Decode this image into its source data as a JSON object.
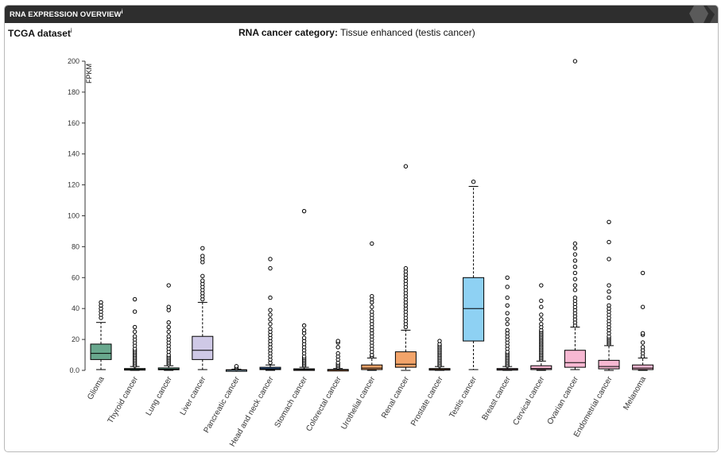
{
  "panel": {
    "title": "RNA EXPRESSION OVERVIEW",
    "title_sup": "i"
  },
  "dataset": {
    "label": "TCGA dataset",
    "sup": "i"
  },
  "category": {
    "key": "RNA cancer category:",
    "value": "Tissue enhanced (testis cancer)"
  },
  "chart_data": {
    "type": "boxplot",
    "ylabel": "FPKM",
    "ylim": [
      0,
      200
    ],
    "yticks": [
      "0.0",
      "20",
      "40",
      "60",
      "80",
      "100",
      "120",
      "140",
      "160",
      "180",
      "200"
    ],
    "grid": false,
    "categories": [
      "Glioma",
      "Thyroid cancer",
      "Lung cancer",
      "Liver cancer",
      "Pancreatic cancer",
      "Head and neck cancer",
      "Stomach cancer",
      "Colorectal cancer",
      "Urothelial cancer",
      "Renal cancer",
      "Prostate cancer",
      "Testis cancer",
      "Breast cancer",
      "Cervical cancer",
      "Ovarian cancer",
      "Endometrial cancer",
      "Melanoma"
    ],
    "boxes": [
      {
        "category": "Glioma",
        "color": "#69a88e",
        "whisker_low": 0.5,
        "q1": 7,
        "median": 11,
        "q3": 17,
        "whisker_high": 31,
        "outliers": [
          34,
          36,
          38,
          40,
          42,
          44
        ]
      },
      {
        "category": "Thyroid cancer",
        "color": "#69a88e",
        "whisker_low": 0,
        "q1": 0.3,
        "median": 0.6,
        "q3": 1.2,
        "whisker_high": 2.5,
        "outliers": [
          3,
          4,
          5,
          6,
          7,
          8,
          9,
          10,
          11,
          12,
          13,
          14,
          16,
          18,
          20,
          22,
          25,
          28,
          38,
          46
        ]
      },
      {
        "category": "Lung cancer",
        "color": "#69a88e",
        "whisker_low": 0,
        "q1": 0.4,
        "median": 0.8,
        "q3": 1.6,
        "whisker_high": 3,
        "outliers": [
          4,
          5,
          6,
          7,
          8,
          9,
          10,
          12,
          14,
          16,
          18,
          20,
          22,
          25,
          28,
          31,
          39,
          41,
          55
        ]
      },
      {
        "category": "Liver cancer",
        "color": "#cfc9e6",
        "whisker_low": 0.5,
        "q1": 7,
        "median": 13,
        "q3": 22,
        "whisker_high": 44,
        "outliers": [
          46,
          48,
          50,
          52,
          54,
          56,
          58,
          61,
          70,
          72,
          74,
          79
        ]
      },
      {
        "category": "Pancreatic cancer",
        "color": "#b1d5e7",
        "whisker_low": 0,
        "q1": 0.1,
        "median": 0.2,
        "q3": 0.4,
        "whisker_high": 0.8,
        "outliers": [
          1.2,
          2,
          2.7
        ]
      },
      {
        "category": "Head and neck cancer",
        "color": "#3b6fb5",
        "whisker_low": 0,
        "q1": 0.5,
        "median": 1,
        "q3": 2,
        "whisker_high": 3.5,
        "outliers": [
          5,
          7,
          9,
          11,
          13,
          15,
          17,
          19,
          21,
          23,
          25,
          27,
          30,
          33,
          36,
          39,
          47,
          66,
          72
        ]
      },
      {
        "category": "Stomach cancer",
        "color": "#f3a46a",
        "whisker_low": 0,
        "q1": 0.2,
        "median": 0.5,
        "q3": 1,
        "whisker_high": 2,
        "outliers": [
          3,
          4,
          5,
          6,
          7,
          8,
          9,
          11,
          13,
          15,
          17,
          19,
          21,
          24,
          26,
          29,
          103
        ]
      },
      {
        "category": "Colorectal cancer",
        "color": "#f3a46a",
        "whisker_low": 0,
        "q1": 0.1,
        "median": 0.3,
        "q3": 0.6,
        "whisker_high": 1.2,
        "outliers": [
          2,
          3,
          4,
          5,
          7,
          9,
          11,
          15,
          18,
          19
        ]
      },
      {
        "category": "Urothelial cancer",
        "color": "#f3a46a",
        "whisker_low": 0,
        "q1": 0.5,
        "median": 1.5,
        "q3": 3.5,
        "whisker_high": 8,
        "outliers": [
          9,
          10,
          12,
          14,
          16,
          18,
          20,
          22,
          24,
          26,
          28,
          30,
          32,
          34,
          36,
          38,
          41,
          44,
          46,
          48,
          82
        ]
      },
      {
        "category": "Renal cancer",
        "color": "#f3a46a",
        "whisker_low": 0,
        "q1": 2,
        "median": 4,
        "q3": 12,
        "whisker_high": 26,
        "outliers": [
          28,
          30,
          32,
          34,
          36,
          38,
          40,
          42,
          44,
          46,
          48,
          50,
          52,
          54,
          56,
          58,
          60,
          62,
          64,
          66,
          132
        ]
      },
      {
        "category": "Prostate cancer",
        "color": "#f3a46a",
        "whisker_low": 0,
        "q1": 0.3,
        "median": 0.6,
        "q3": 1.2,
        "whisker_high": 2.5,
        "outliers": [
          3,
          4,
          5,
          6,
          7,
          8,
          9,
          10,
          11,
          12,
          13,
          14,
          15,
          16,
          17,
          19
        ]
      },
      {
        "category": "Testis cancer",
        "color": "#8ed1f3",
        "whisker_low": 0.5,
        "q1": 19,
        "median": 40,
        "q3": 60,
        "whisker_high": 119,
        "outliers": [
          122
        ]
      },
      {
        "category": "Breast cancer",
        "color": "#f7b8d2",
        "whisker_low": 0,
        "q1": 0.3,
        "median": 0.6,
        "q3": 1.2,
        "whisker_high": 2.5,
        "outliers": [
          3,
          4,
          5,
          6,
          7,
          8,
          9,
          10,
          11,
          12,
          14,
          16,
          18,
          20,
          22,
          24,
          26,
          30,
          33,
          37,
          42,
          47,
          54,
          60
        ]
      },
      {
        "category": "Cervical cancer",
        "color": "#f7b8d2",
        "whisker_low": 0,
        "q1": 0.5,
        "median": 1.2,
        "q3": 3,
        "whisker_high": 6,
        "outliers": [
          7,
          8,
          9,
          10,
          11,
          12,
          13,
          14,
          15,
          16,
          17,
          18,
          19,
          20,
          21,
          22,
          23,
          24,
          25,
          26,
          28,
          30,
          33,
          36,
          41,
          45,
          55
        ]
      },
      {
        "category": "Ovarian cancer",
        "color": "#f7b8d2",
        "whisker_low": 0.5,
        "q1": 2,
        "median": 5,
        "q3": 13,
        "whisker_high": 28,
        "outliers": [
          29,
          31,
          33,
          35,
          37,
          39,
          41,
          43,
          45,
          47,
          52,
          55,
          59,
          63,
          67,
          71,
          75,
          79,
          82,
          200
        ]
      },
      {
        "category": "Endometrial cancer",
        "color": "#f7b8d2",
        "whisker_low": 0,
        "q1": 1,
        "median": 2.5,
        "q3": 6.5,
        "whisker_high": 16,
        "outliers": [
          17,
          18,
          19,
          20,
          21,
          22,
          24,
          26,
          28,
          30,
          32,
          34,
          36,
          38,
          40,
          42,
          47,
          51,
          55,
          72,
          83,
          96
        ]
      },
      {
        "category": "Melanoma",
        "color": "#f7b8d2",
        "whisker_low": 0,
        "q1": 0.5,
        "median": 1.5,
        "q3": 3.5,
        "whisker_high": 8,
        "outliers": [
          9,
          11,
          13,
          15,
          18,
          23,
          24,
          41,
          63
        ]
      }
    ]
  }
}
